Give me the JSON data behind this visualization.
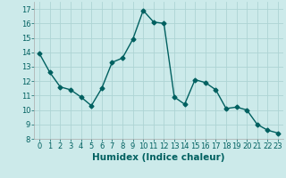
{
  "x": [
    0,
    1,
    2,
    3,
    4,
    5,
    6,
    7,
    8,
    9,
    10,
    11,
    12,
    13,
    14,
    15,
    16,
    17,
    18,
    19,
    20,
    21,
    22,
    23
  ],
  "y": [
    13.9,
    12.6,
    11.6,
    11.4,
    10.9,
    10.3,
    11.5,
    13.3,
    13.6,
    14.9,
    16.9,
    16.1,
    16.0,
    10.9,
    10.4,
    12.1,
    11.9,
    11.4,
    10.1,
    10.2,
    10.0,
    9.0,
    8.6,
    8.4
  ],
  "line_color": "#006060",
  "marker": "D",
  "marker_size": 2.5,
  "line_width": 1.0,
  "xlabel": "Humidex (Indice chaleur)",
  "xlim": [
    -0.5,
    23.5
  ],
  "ylim": [
    8,
    17.5
  ],
  "yticks": [
    8,
    9,
    10,
    11,
    12,
    13,
    14,
    15,
    16,
    17
  ],
  "xticks": [
    0,
    1,
    2,
    3,
    4,
    5,
    6,
    7,
    8,
    9,
    10,
    11,
    12,
    13,
    14,
    15,
    16,
    17,
    18,
    19,
    20,
    21,
    22,
    23
  ],
  "bg_color": "#cceaea",
  "grid_color": "#add4d4",
  "tick_fontsize": 6,
  "xlabel_fontsize": 7.5
}
